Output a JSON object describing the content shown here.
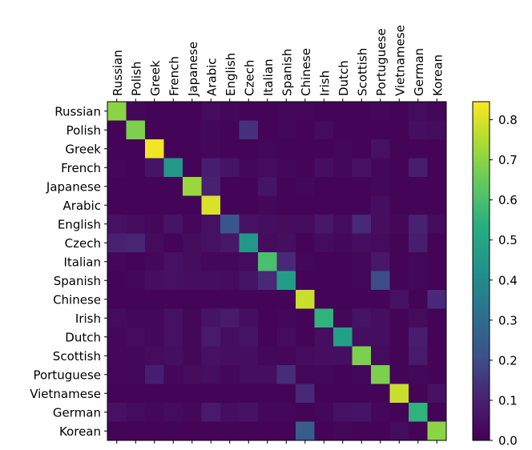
{
  "chart_data": {
    "type": "heatmap",
    "title": "",
    "xlabel": "",
    "ylabel": "",
    "x_tick_position": "top",
    "x_tick_rotation": "vertical",
    "categories": [
      "Russian",
      "Polish",
      "Greek",
      "French",
      "Japanese",
      "Arabic",
      "English",
      "Czech",
      "Italian",
      "Spanish",
      "Chinese",
      "Irish",
      "Dutch",
      "Scottish",
      "Portuguese",
      "Vietnamese",
      "German",
      "Korean"
    ],
    "colormap": "viridis",
    "vmin": 0.0,
    "vmax": 0.845,
    "colorbar": {
      "ticks": [
        0.0,
        0.1,
        0.2,
        0.3,
        0.4,
        0.5,
        0.6,
        0.7,
        0.8
      ],
      "tick_labels": [
        "0.0",
        "0.1",
        "0.2",
        "0.3",
        "0.4",
        "0.5",
        "0.6",
        "0.7",
        "0.8"
      ]
    },
    "matrix": [
      [
        0.7,
        0.02,
        0.01,
        0.01,
        0.01,
        0.03,
        0.02,
        0.01,
        0.01,
        0.02,
        0.02,
        0.01,
        0.01,
        0.01,
        0.02,
        0.01,
        0.03,
        0.02
      ],
      [
        0.01,
        0.68,
        0.01,
        0.01,
        0.01,
        0.02,
        0.01,
        0.14,
        0.01,
        0.02,
        0.01,
        0.03,
        0.01,
        0.01,
        0.01,
        0.01,
        0.04,
        0.03
      ],
      [
        0.01,
        0.01,
        0.83,
        0.01,
        0.01,
        0.02,
        0.01,
        0.01,
        0.02,
        0.01,
        0.01,
        0.01,
        0.02,
        0.01,
        0.05,
        0.01,
        0.01,
        0.01
      ],
      [
        0.02,
        0.01,
        0.06,
        0.45,
        0.01,
        0.09,
        0.06,
        0.02,
        0.03,
        0.02,
        0.01,
        0.04,
        0.02,
        0.05,
        0.02,
        0.01,
        0.09,
        0.01
      ],
      [
        0.01,
        0.01,
        0.01,
        0.01,
        0.72,
        0.1,
        0.01,
        0.01,
        0.06,
        0.01,
        0.02,
        0.01,
        0.01,
        0.01,
        0.02,
        0.01,
        0.01,
        0.01
      ],
      [
        0.01,
        0.01,
        0.01,
        0.01,
        0.01,
        0.8,
        0.01,
        0.01,
        0.02,
        0.01,
        0.01,
        0.01,
        0.01,
        0.01,
        0.04,
        0.01,
        0.01,
        0.01
      ],
      [
        0.05,
        0.03,
        0.02,
        0.06,
        0.02,
        0.05,
        0.22,
        0.05,
        0.04,
        0.03,
        0.03,
        0.07,
        0.03,
        0.12,
        0.04,
        0.02,
        0.1,
        0.03
      ],
      [
        0.1,
        0.11,
        0.03,
        0.01,
        0.03,
        0.05,
        0.07,
        0.45,
        0.03,
        0.04,
        0.01,
        0.03,
        0.02,
        0.04,
        0.03,
        0.01,
        0.09,
        0.01
      ],
      [
        0.02,
        0.01,
        0.02,
        0.05,
        0.03,
        0.02,
        0.02,
        0.03,
        0.6,
        0.12,
        0.02,
        0.01,
        0.01,
        0.02,
        0.07,
        0.01,
        0.02,
        0.01
      ],
      [
        0.01,
        0.02,
        0.04,
        0.05,
        0.04,
        0.04,
        0.03,
        0.06,
        0.12,
        0.47,
        0.01,
        0.01,
        0.01,
        0.02,
        0.2,
        0.01,
        0.02,
        0.01
      ],
      [
        0.01,
        0.01,
        0.01,
        0.01,
        0.01,
        0.01,
        0.01,
        0.01,
        0.01,
        0.01,
        0.78,
        0.01,
        0.01,
        0.01,
        0.01,
        0.05,
        0.01,
        0.12
      ],
      [
        0.03,
        0.02,
        0.02,
        0.05,
        0.02,
        0.06,
        0.08,
        0.04,
        0.01,
        0.02,
        0.01,
        0.55,
        0.02,
        0.06,
        0.04,
        0.01,
        0.03,
        0.01
      ],
      [
        0.02,
        0.03,
        0.02,
        0.05,
        0.02,
        0.08,
        0.04,
        0.06,
        0.01,
        0.03,
        0.01,
        0.04,
        0.48,
        0.04,
        0.04,
        0.01,
        0.09,
        0.01
      ],
      [
        0.02,
        0.02,
        0.03,
        0.04,
        0.02,
        0.05,
        0.04,
        0.04,
        0.02,
        0.02,
        0.03,
        0.04,
        0.04,
        0.68,
        0.03,
        0.01,
        0.08,
        0.01
      ],
      [
        0.02,
        0.02,
        0.09,
        0.02,
        0.03,
        0.04,
        0.02,
        0.04,
        0.04,
        0.13,
        0.02,
        0.02,
        0.01,
        0.02,
        0.68,
        0.01,
        0.02,
        0.01
      ],
      [
        0.01,
        0.01,
        0.01,
        0.01,
        0.01,
        0.01,
        0.01,
        0.01,
        0.01,
        0.01,
        0.12,
        0.01,
        0.01,
        0.01,
        0.01,
        0.78,
        0.01,
        0.05
      ],
      [
        0.05,
        0.03,
        0.02,
        0.03,
        0.02,
        0.08,
        0.04,
        0.05,
        0.02,
        0.02,
        0.01,
        0.02,
        0.05,
        0.06,
        0.02,
        0.01,
        0.55,
        0.01
      ],
      [
        0.01,
        0.01,
        0.01,
        0.01,
        0.01,
        0.01,
        0.01,
        0.01,
        0.01,
        0.01,
        0.25,
        0.01,
        0.02,
        0.01,
        0.01,
        0.03,
        0.01,
        0.7
      ]
    ]
  }
}
